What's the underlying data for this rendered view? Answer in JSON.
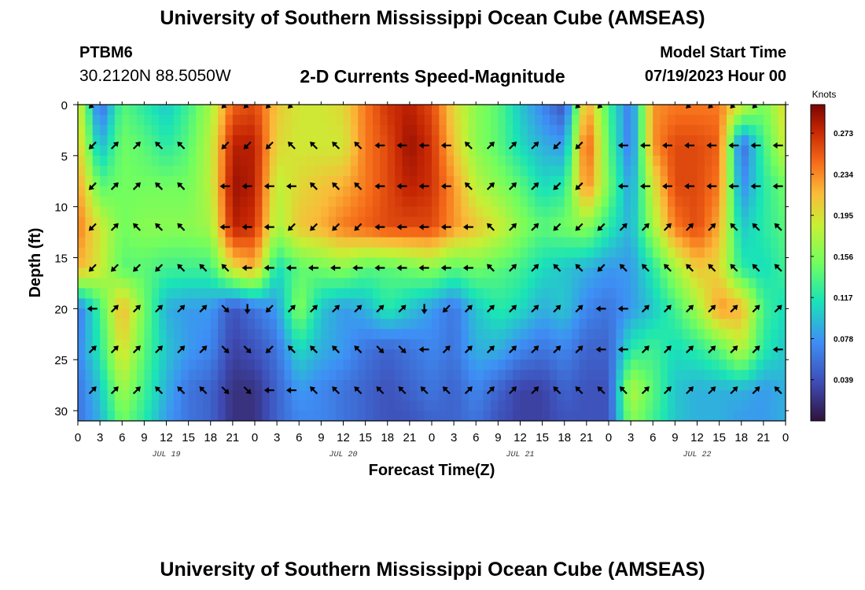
{
  "header": {
    "title": "University of Southern Mississippi Ocean Cube (AMSEAS)",
    "station_id": "PTBM6",
    "station_coords": "30.2120N  88.5050W",
    "plot_subtitle": "2-D Currents Speed-Magnitude",
    "model_start_label": "Model Start Time",
    "model_start_value": "07/19/2023 Hour 00"
  },
  "footer": {
    "title": "University of Southern Mississippi Ocean Cube (AMSEAS)"
  },
  "chart_data": {
    "type": "heatmap",
    "title": "2-D Currents Speed-Magnitude",
    "xlabel": "Forecast Time(Z)",
    "ylabel": "Depth (ft)",
    "x_tick_labels": [
      "0",
      "3",
      "6",
      "9",
      "12",
      "15",
      "18",
      "21",
      "0",
      "3",
      "6",
      "9",
      "12",
      "15",
      "18",
      "21",
      "0",
      "3",
      "6",
      "9",
      "12",
      "15",
      "18",
      "21",
      "0",
      "3",
      "6",
      "9",
      "12",
      "15",
      "18",
      "21",
      "0"
    ],
    "x_range_hours": [
      0,
      96
    ],
    "date_labels": [
      {
        "text": "JUL 19",
        "hour": 12
      },
      {
        "text": "JUL 20",
        "hour": 36
      },
      {
        "text": "JUL 21",
        "hour": 60
      },
      {
        "text": "JUL 22",
        "hour": 84
      }
    ],
    "y_ticks": [
      0,
      5,
      10,
      15,
      20,
      25,
      30
    ],
    "y_range_ft": [
      0,
      31
    ],
    "colorbar": {
      "title": "Knots",
      "range": [
        0.0,
        0.3
      ],
      "tick_values": [
        0.039,
        0.078,
        0.117,
        0.156,
        0.195,
        0.234,
        0.273
      ],
      "tick_labels": [
        "0.039",
        "0.078",
        "0.117",
        "0.156",
        "0.195",
        "0.234",
        "0.273"
      ]
    },
    "speed_depth_ft": [
      0,
      4,
      8,
      12,
      16,
      20,
      24,
      28,
      31
    ],
    "speed_time_hours": [
      0,
      3,
      6,
      9,
      12,
      15,
      18,
      21,
      24,
      27,
      30,
      33,
      36,
      39,
      42,
      45,
      48,
      51,
      54,
      57,
      60,
      63,
      66,
      69,
      72,
      75,
      78,
      81,
      84,
      87,
      90,
      93,
      96
    ],
    "speed_knots": [
      [
        0.2,
        0.05,
        0.14,
        0.12,
        0.1,
        0.13,
        0.17,
        0.25,
        0.26,
        0.21,
        0.19,
        0.19,
        0.2,
        0.24,
        0.27,
        0.28,
        0.26,
        0.2,
        0.16,
        0.14,
        0.1,
        0.07,
        0.04,
        0.23,
        0.13,
        0.06,
        0.23,
        0.24,
        0.24,
        0.24,
        0.19,
        0.15,
        0.2
      ],
      [
        0.21,
        0.09,
        0.15,
        0.14,
        0.12,
        0.14,
        0.18,
        0.28,
        0.28,
        0.2,
        0.19,
        0.19,
        0.19,
        0.24,
        0.26,
        0.29,
        0.27,
        0.21,
        0.16,
        0.14,
        0.11,
        0.09,
        0.08,
        0.26,
        0.14,
        0.06,
        0.23,
        0.26,
        0.26,
        0.25,
        0.05,
        0.13,
        0.19
      ],
      [
        0.23,
        0.14,
        0.15,
        0.15,
        0.15,
        0.15,
        0.18,
        0.29,
        0.28,
        0.18,
        0.2,
        0.21,
        0.22,
        0.24,
        0.26,
        0.28,
        0.27,
        0.23,
        0.18,
        0.16,
        0.14,
        0.11,
        0.12,
        0.24,
        0.15,
        0.08,
        0.19,
        0.26,
        0.26,
        0.24,
        0.07,
        0.12,
        0.15
      ],
      [
        0.24,
        0.19,
        0.15,
        0.16,
        0.16,
        0.16,
        0.17,
        0.28,
        0.27,
        0.17,
        0.21,
        0.22,
        0.24,
        0.25,
        0.26,
        0.26,
        0.26,
        0.23,
        0.21,
        0.19,
        0.16,
        0.14,
        0.15,
        0.16,
        0.12,
        0.09,
        0.17,
        0.24,
        0.26,
        0.22,
        0.1,
        0.12,
        0.14
      ],
      [
        0.22,
        0.19,
        0.14,
        0.14,
        0.13,
        0.13,
        0.13,
        0.2,
        0.22,
        0.11,
        0.14,
        0.15,
        0.16,
        0.14,
        0.14,
        0.15,
        0.16,
        0.14,
        0.15,
        0.14,
        0.13,
        0.11,
        0.1,
        0.09,
        0.08,
        0.08,
        0.12,
        0.17,
        0.21,
        0.2,
        0.12,
        0.11,
        0.13
      ],
      [
        0.06,
        0.13,
        0.22,
        0.15,
        0.09,
        0.08,
        0.08,
        0.04,
        0.06,
        0.08,
        0.16,
        0.1,
        0.08,
        0.09,
        0.12,
        0.1,
        0.08,
        0.06,
        0.1,
        0.12,
        0.11,
        0.09,
        0.1,
        0.07,
        0.06,
        0.08,
        0.1,
        0.13,
        0.17,
        0.23,
        0.22,
        0.13,
        0.11
      ],
      [
        0.07,
        0.12,
        0.2,
        0.14,
        0.1,
        0.08,
        0.07,
        0.03,
        0.04,
        0.06,
        0.11,
        0.09,
        0.08,
        0.06,
        0.05,
        0.06,
        0.07,
        0.06,
        0.09,
        0.09,
        0.07,
        0.06,
        0.07,
        0.05,
        0.05,
        0.12,
        0.13,
        0.11,
        0.12,
        0.14,
        0.18,
        0.12,
        0.1
      ],
      [
        0.06,
        0.1,
        0.17,
        0.13,
        0.09,
        0.06,
        0.05,
        0.02,
        0.02,
        0.05,
        0.08,
        0.07,
        0.06,
        0.05,
        0.04,
        0.05,
        0.06,
        0.05,
        0.07,
        0.05,
        0.03,
        0.03,
        0.05,
        0.04,
        0.04,
        0.18,
        0.14,
        0.1,
        0.09,
        0.09,
        0.09,
        0.08,
        0.09
      ],
      [
        0.06,
        0.09,
        0.15,
        0.12,
        0.08,
        0.06,
        0.05,
        0.02,
        0.02,
        0.05,
        0.07,
        0.07,
        0.06,
        0.05,
        0.04,
        0.04,
        0.05,
        0.05,
        0.06,
        0.04,
        0.03,
        0.03,
        0.04,
        0.04,
        0.04,
        0.16,
        0.13,
        0.1,
        0.09,
        0.09,
        0.08,
        0.08,
        0.09
      ]
    ],
    "arrow_depths_ft": [
      0,
      4,
      8,
      12,
      16,
      20,
      24,
      28
    ],
    "arrow_times_hours": [
      2,
      5,
      8,
      11,
      14,
      17,
      20,
      23,
      26,
      29,
      32,
      35,
      38,
      41,
      44,
      47,
      50,
      53,
      56,
      59,
      62,
      65,
      68,
      71,
      74,
      77,
      80,
      83,
      86,
      89,
      92,
      95
    ],
    "arrow_directions_deg": [
      [
        225,
        null,
        null,
        null,
        null,
        null,
        225,
        225,
        225,
        225,
        null,
        null,
        null,
        null,
        null,
        null,
        null,
        null,
        null,
        null,
        null,
        null,
        225,
        225,
        null,
        null,
        null,
        225,
        225,
        225,
        225,
        null
      ],
      [
        225,
        45,
        45,
        315,
        315,
        null,
        225,
        225,
        225,
        315,
        315,
        315,
        315,
        270,
        270,
        270,
        270,
        315,
        45,
        45,
        45,
        225,
        225,
        null,
        270,
        270,
        270,
        270,
        270,
        270,
        270,
        270
      ],
      [
        225,
        45,
        45,
        315,
        315,
        null,
        270,
        270,
        270,
        270,
        315,
        315,
        315,
        270,
        270,
        270,
        270,
        315,
        45,
        45,
        45,
        225,
        225,
        null,
        270,
        270,
        270,
        270,
        270,
        270,
        270,
        270
      ],
      [
        225,
        45,
        315,
        315,
        315,
        null,
        270,
        270,
        270,
        225,
        225,
        225,
        225,
        270,
        270,
        270,
        270,
        270,
        315,
        45,
        45,
        225,
        225,
        225,
        45,
        45,
        45,
        45,
        45,
        315,
        315,
        315
      ],
      [
        225,
        225,
        225,
        225,
        315,
        315,
        315,
        270,
        270,
        270,
        270,
        270,
        270,
        270,
        270,
        270,
        270,
        270,
        315,
        45,
        45,
        315,
        315,
        225,
        315,
        315,
        315,
        315,
        315,
        315,
        315,
        315
      ],
      [
        270,
        45,
        45,
        45,
        45,
        45,
        135,
        180,
        225,
        45,
        45,
        45,
        45,
        45,
        45,
        180,
        225,
        45,
        45,
        45,
        45,
        45,
        45,
        270,
        270,
        45,
        45,
        45,
        45,
        45,
        45,
        45
      ],
      [
        45,
        45,
        45,
        45,
        45,
        45,
        135,
        135,
        225,
        315,
        315,
        315,
        315,
        135,
        135,
        270,
        45,
        45,
        45,
        45,
        45,
        45,
        45,
        270,
        270,
        45,
        45,
        45,
        45,
        45,
        45,
        270
      ],
      [
        45,
        45,
        45,
        315,
        315,
        315,
        135,
        135,
        270,
        270,
        315,
        315,
        315,
        315,
        315,
        315,
        315,
        45,
        45,
        45,
        45,
        315,
        315,
        315,
        315,
        45,
        45,
        45,
        45,
        45,
        45,
        315
      ]
    ]
  }
}
